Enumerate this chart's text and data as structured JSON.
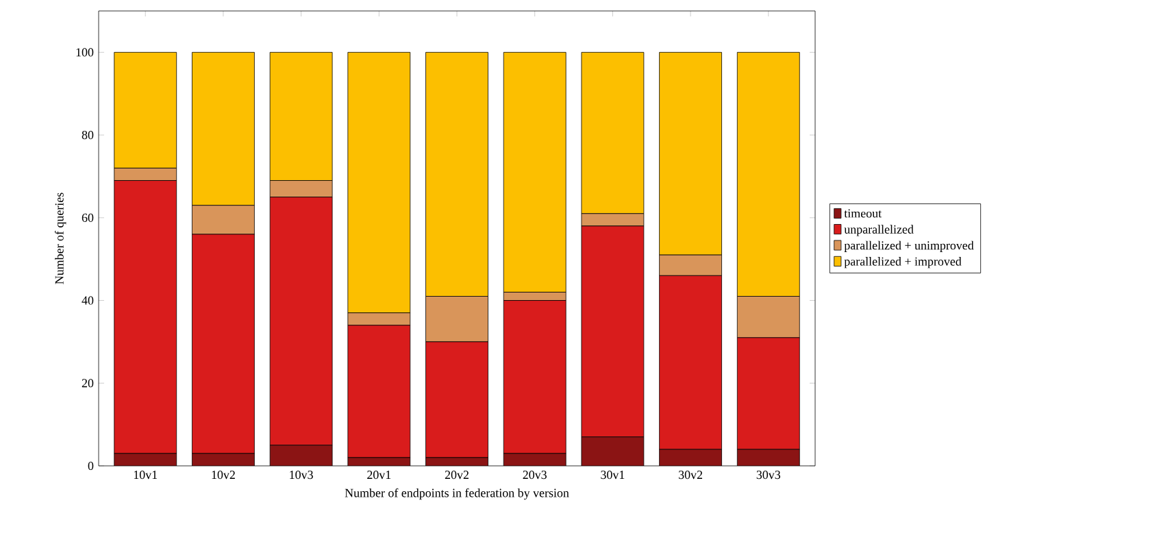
{
  "chart_data": {
    "type": "bar",
    "stacked": true,
    "xlabel": "Number of endpoints in federation by version",
    "ylabel": "Number of queries",
    "categories": [
      "10v1",
      "10v2",
      "10v3",
      "20v1",
      "20v2",
      "20v3",
      "30v1",
      "30v2",
      "30v3"
    ],
    "series": [
      {
        "name": "timeout",
        "color": "#8b1414",
        "values": [
          3,
          3,
          5,
          2,
          2,
          3,
          7,
          4,
          4
        ]
      },
      {
        "name": "unparallelized",
        "color": "#d91c1c",
        "values": [
          66,
          53,
          60,
          32,
          28,
          37,
          51,
          42,
          27
        ]
      },
      {
        "name": "parallelized + unimproved",
        "color": "#d9955a",
        "values": [
          3,
          7,
          4,
          3,
          11,
          2,
          3,
          5,
          10
        ]
      },
      {
        "name": "parallelized + improved",
        "color": "#fcbf00",
        "values": [
          28,
          37,
          31,
          63,
          59,
          58,
          39,
          49,
          59
        ]
      }
    ],
    "ylim": [
      0,
      110
    ],
    "yticks": [
      0,
      20,
      40,
      60,
      80,
      100
    ],
    "grid": false,
    "legend": "right"
  }
}
